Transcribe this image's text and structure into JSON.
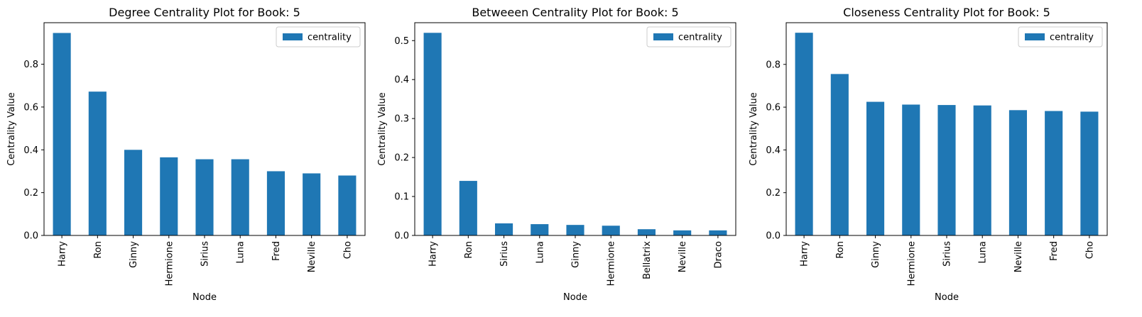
{
  "chart_data": [
    {
      "type": "bar",
      "title": "Degree Centrality Plot for Book: 5",
      "xlabel": "Node",
      "ylabel": "Centrality Value",
      "categories": [
        "Harry",
        "Ron",
        "Ginny",
        "Hermione",
        "Sirius",
        "Luna",
        "Fred",
        "Neville",
        "Cho"
      ],
      "series": [
        {
          "name": "centrality",
          "values": [
            0.946,
            0.672,
            0.4,
            0.365,
            0.356,
            0.356,
            0.3,
            0.29,
            0.28
          ]
        }
      ],
      "ylim": [
        0,
        0.994
      ],
      "yticks": [
        "0.0",
        "0.2",
        "0.4",
        "0.6",
        "0.8"
      ],
      "color": "#1f77b4",
      "legend": "top-right",
      "grid": false
    },
    {
      "type": "bar",
      "title": "Betweeen Centrality Plot for Book: 5",
      "xlabel": "Node",
      "ylabel": "Centrality Value",
      "categories": [
        "Harry",
        "Ron",
        "Sirius",
        "Luna",
        "Ginny",
        "Hermione",
        "Bellatrix",
        "Neville",
        "Draco"
      ],
      "series": [
        {
          "name": "centrality",
          "values": [
            0.52,
            0.14,
            0.031,
            0.029,
            0.027,
            0.025,
            0.016,
            0.013,
            0.013
          ]
        }
      ],
      "ylim": [
        0,
        0.546
      ],
      "yticks": [
        "0.0",
        "0.1",
        "0.2",
        "0.3",
        "0.4",
        "0.5"
      ],
      "color": "#1f77b4",
      "legend": "top-right",
      "grid": false
    },
    {
      "type": "bar",
      "title": "Closeness Centrality Plot for Book: 5",
      "xlabel": "Node",
      "ylabel": "Centrality Value",
      "categories": [
        "Harry",
        "Ron",
        "Ginny",
        "Hermione",
        "Sirius",
        "Luna",
        "Neville",
        "Fred",
        "Cho"
      ],
      "series": [
        {
          "name": "centrality",
          "values": [
            0.948,
            0.755,
            0.625,
            0.612,
            0.61,
            0.608,
            0.586,
            0.582,
            0.579
          ]
        }
      ],
      "ylim": [
        0,
        0.995
      ],
      "yticks": [
        "0.0",
        "0.2",
        "0.4",
        "0.6",
        "0.8"
      ],
      "color": "#1f77b4",
      "legend": "top-right",
      "grid": false
    }
  ]
}
